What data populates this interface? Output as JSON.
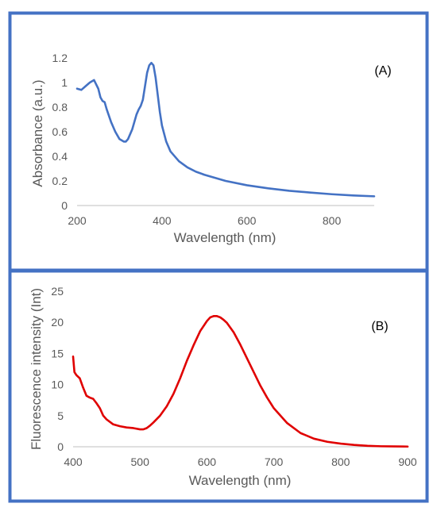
{
  "colors": {
    "frame": "#4472c4",
    "axis": "#bfbfbf",
    "text": "#595959",
    "label": "#000000"
  },
  "chart_data": [
    {
      "type": "line",
      "panel_label": "(A)",
      "xlabel": "Wavelength (nm)",
      "ylabel": "Absorbance (a.u.)",
      "xlim": [
        200,
        900
      ],
      "ylim": [
        0,
        1.2
      ],
      "xticks": [
        "200",
        "400",
        "600",
        "800"
      ],
      "yticks": [
        "0",
        "0.2",
        "0.4",
        "0.6",
        "0.8",
        "1",
        "1.2"
      ],
      "grid": false,
      "color": "#4472c4",
      "series": [
        {
          "x": [
            200,
            210,
            220,
            230,
            240,
            250,
            255,
            260,
            265,
            270,
            280,
            290,
            300,
            310,
            315,
            320,
            330,
            340,
            345,
            350,
            355,
            360,
            365,
            370,
            375,
            380,
            385,
            390,
            395,
            400,
            410,
            420,
            440,
            460,
            480,
            500,
            550,
            600,
            650,
            700,
            750,
            800,
            850,
            900
          ],
          "y": [
            0.95,
            0.94,
            0.97,
            1.0,
            1.02,
            0.95,
            0.88,
            0.85,
            0.84,
            0.78,
            0.68,
            0.6,
            0.54,
            0.52,
            0.52,
            0.54,
            0.62,
            0.74,
            0.78,
            0.81,
            0.86,
            0.97,
            1.08,
            1.14,
            1.16,
            1.14,
            1.04,
            0.9,
            0.76,
            0.65,
            0.52,
            0.44,
            0.36,
            0.31,
            0.275,
            0.25,
            0.2,
            0.165,
            0.14,
            0.12,
            0.105,
            0.092,
            0.082,
            0.075
          ]
        }
      ]
    },
    {
      "type": "line",
      "panel_label": "(B)",
      "xlabel": "Wavelength (nm)",
      "ylabel": "Fluorescence intensity (Int)",
      "xlim": [
        400,
        900
      ],
      "ylim": [
        0,
        25
      ],
      "xticks": [
        "400",
        "500",
        "600",
        "700",
        "800",
        "900"
      ],
      "yticks": [
        "0",
        "5",
        "10",
        "15",
        "20",
        "25"
      ],
      "grid": false,
      "color": "#e00000",
      "series": [
        {
          "x": [
            400,
            402,
            405,
            410,
            415,
            420,
            425,
            430,
            435,
            440,
            445,
            450,
            460,
            470,
            480,
            490,
            500,
            505,
            510,
            515,
            520,
            530,
            540,
            550,
            560,
            570,
            580,
            590,
            600,
            605,
            610,
            615,
            620,
            625,
            630,
            640,
            650,
            660,
            670,
            680,
            690,
            700,
            720,
            740,
            760,
            780,
            800,
            820,
            840,
            860,
            880,
            900
          ],
          "y": [
            14.5,
            12.0,
            11.5,
            11.0,
            9.5,
            8.2,
            7.9,
            7.7,
            7.0,
            6.2,
            5.0,
            4.4,
            3.6,
            3.3,
            3.1,
            3.0,
            2.8,
            2.8,
            3.0,
            3.4,
            3.9,
            5.0,
            6.5,
            8.5,
            11.0,
            13.8,
            16.3,
            18.6,
            20.2,
            20.8,
            21.0,
            21.0,
            20.8,
            20.4,
            19.9,
            18.4,
            16.4,
            14.2,
            12.0,
            9.8,
            7.9,
            6.2,
            3.8,
            2.2,
            1.3,
            0.8,
            0.5,
            0.3,
            0.15,
            0.08,
            0.05,
            0.03
          ]
        }
      ]
    }
  ]
}
